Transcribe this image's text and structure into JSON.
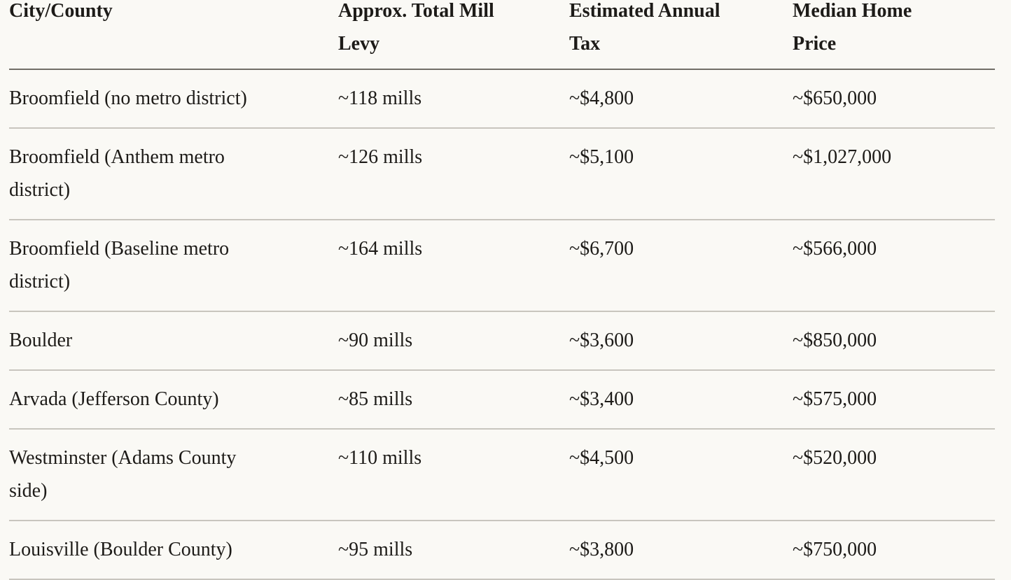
{
  "page": {
    "background_color": "#faf9f5",
    "text_color": "#1d1b18",
    "header_border_color": "#716e67",
    "row_border_color": "#c8c5be"
  },
  "table": {
    "columns": [
      {
        "label": "City/County"
      },
      {
        "label": "Approx. Total Mill\nLevy"
      },
      {
        "label": "Estimated Annual\nTax"
      },
      {
        "label": "Median Home\nPrice"
      }
    ],
    "rows": [
      {
        "cells": [
          "Broomfield (no metro district)",
          "~118 mills",
          "~$4,800",
          "~$650,000"
        ]
      },
      {
        "cells": [
          "Broomfield (Anthem metro\ndistrict)",
          "~126 mills",
          "~$5,100",
          "~$1,027,000"
        ]
      },
      {
        "cells": [
          "Broomfield (Baseline metro\ndistrict)",
          "~164 mills",
          "~$6,700",
          "~$566,000"
        ]
      },
      {
        "cells": [
          "Boulder",
          "~90 mills",
          "~$3,600",
          "~$850,000"
        ]
      },
      {
        "cells": [
          "Arvada (Jefferson County)",
          "~85 mills",
          "~$3,400",
          "~$575,000"
        ]
      },
      {
        "cells": [
          "Westminster (Adams County\nside)",
          "~110 mills",
          "~$4,500",
          "~$520,000"
        ]
      },
      {
        "cells": [
          "Louisville (Boulder County)",
          "~95 mills",
          "~$3,800",
          "~$750,000"
        ]
      }
    ]
  }
}
